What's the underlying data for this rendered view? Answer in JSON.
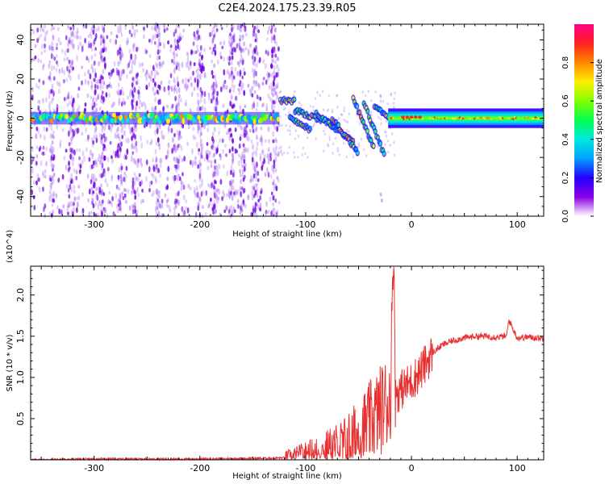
{
  "title": "C2E4.2024.175.23.39.R05",
  "chart_data": [
    {
      "type": "heatmap",
      "xlabel": "Height of straight line (km)",
      "ylabel": "Frequency (Hz)",
      "xlim": [
        -360,
        125
      ],
      "ylim": [
        -50,
        48
      ],
      "x_ticks": [
        -300,
        -200,
        -100,
        0,
        100
      ],
      "y_ticks": [
        -40,
        -20,
        0,
        20,
        40
      ],
      "colorbar": {
        "label": "Normalized spectral amplitude",
        "range": [
          0.0,
          1.0
        ],
        "ticks": [
          0.0,
          0.2,
          0.4,
          0.6,
          0.8
        ],
        "colormap": [
          "#ffffff",
          "#8a00e6",
          "#2200ff",
          "#00a0ff",
          "#00e8e0",
          "#00ff50",
          "#80ff00",
          "#ffee00",
          "#ff8800",
          "#ff2020",
          "#ff0088"
        ]
      },
      "features": [
        {
          "name": "noise region",
          "x_range": [
            -360,
            -125
          ],
          "freq_range": [
            -50,
            48
          ]
        },
        {
          "name": "carrier line",
          "x_range": [
            -360,
            125
          ],
          "freq": 0
        },
        {
          "name": "occultation spread",
          "x_range": [
            -125,
            -15
          ],
          "freq_range": [
            -22,
            10
          ]
        }
      ]
    },
    {
      "type": "line",
      "xlabel": "Height of straight line (km)",
      "ylabel": "SNR (10 * v/v)",
      "y_multiplier": "(x10^4)",
      "xlim": [
        -360,
        125
      ],
      "ylim": [
        0,
        2.35
      ],
      "x_ticks": [
        -300,
        -200,
        -100,
        0,
        100
      ],
      "y_ticks": [
        0.5,
        1.0,
        1.5,
        2.0
      ],
      "color": "#e83030",
      "series": [
        {
          "x": [
            -360,
            -300,
            -200,
            -130,
            -110,
            -95,
            -80,
            -65,
            -50,
            -40,
            -30,
            -20,
            -17,
            -15,
            -10,
            0,
            10,
            20,
            30,
            40,
            50,
            60,
            70,
            80,
            90,
            92,
            100,
            110,
            120,
            125
          ],
          "y": [
            0.0,
            0.01,
            0.01,
            0.02,
            0.03,
            0.05,
            0.08,
            0.15,
            0.3,
            0.45,
            0.6,
            0.75,
            2.35,
            0.8,
            0.85,
            0.95,
            1.1,
            1.3,
            1.4,
            1.45,
            1.48,
            1.5,
            1.5,
            1.49,
            1.5,
            1.7,
            1.48,
            1.49,
            1.48,
            1.47
          ]
        }
      ]
    }
  ]
}
